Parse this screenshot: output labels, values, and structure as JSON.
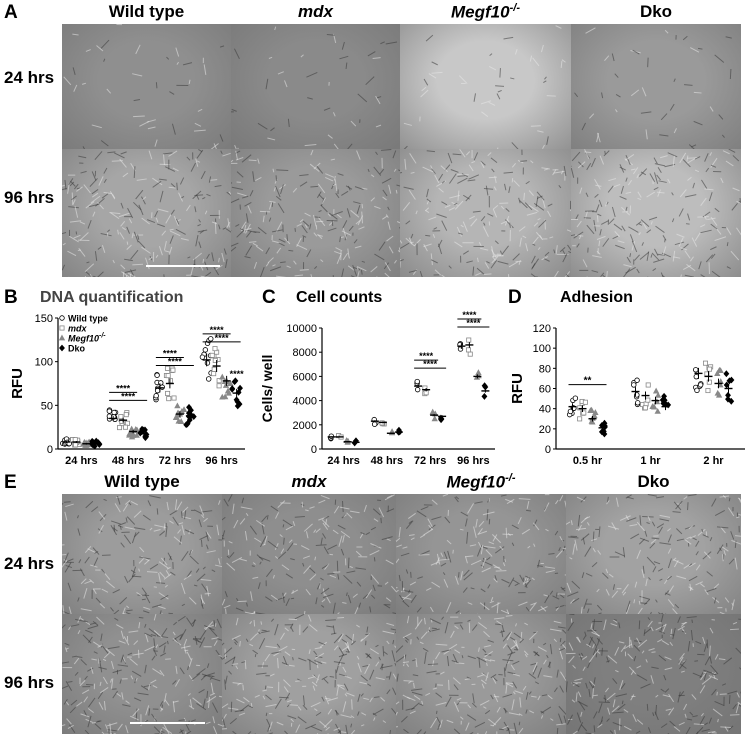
{
  "panelA": {
    "letter": "A",
    "columns": [
      {
        "label": "Wild type",
        "italic": false,
        "sup": ""
      },
      {
        "label": "mdx",
        "italic": true,
        "sup": ""
      },
      {
        "label": "Megf10",
        "italic": true,
        "sup": "-/-"
      },
      {
        "label": "Dko",
        "italic": false,
        "sup": ""
      }
    ],
    "rows": [
      "24 hrs",
      "96 hrs"
    ],
    "tiles": [
      [
        "#8f8f8f",
        "#8a8a8a",
        "#c8c8c8",
        "#9a9a9a"
      ],
      [
        "#a6a6a6",
        "#9a9a9a",
        "#b5b5b5",
        "#bdbdbd"
      ]
    ]
  },
  "panelB": {
    "letter": "B",
    "title": "DNA quantification",
    "legend": [
      {
        "label": "Wild type",
        "italic": false,
        "sup": "",
        "marker": "circle"
      },
      {
        "label": "mdx",
        "italic": true,
        "sup": "",
        "marker": "square"
      },
      {
        "label": "Megf10",
        "italic": true,
        "sup": "-/-",
        "marker": "triangle"
      },
      {
        "label": "Dko",
        "italic": false,
        "sup": "",
        "marker": "diamond"
      }
    ]
  },
  "panelC": {
    "letter": "C",
    "title": "Cell counts"
  },
  "panelD": {
    "letter": "D",
    "title": "Adhesion"
  },
  "panelE": {
    "letter": "E",
    "columns": [
      {
        "label": "Wild type",
        "italic": false,
        "sup": ""
      },
      {
        "label": "mdx",
        "italic": true,
        "sup": ""
      },
      {
        "label": "Megf10",
        "italic": true,
        "sup": "-/-"
      },
      {
        "label": "Dko",
        "italic": false,
        "sup": ""
      }
    ],
    "rows": [
      "24 hrs",
      "96 hrs"
    ],
    "tiles": [
      [
        "#9c9c9c",
        "#8e8e8e",
        "#959595",
        "#a2a2a2"
      ],
      [
        "#909090",
        "#a0a0a0",
        "#9a9a9a",
        "#7f7f7f"
      ]
    ]
  },
  "chart_data": [
    {
      "type": "scatter",
      "panel": "B",
      "title": "DNA quantification",
      "ylabel": "RFU",
      "xlabel": "",
      "categories": [
        "24 hrs",
        "48 hrs",
        "72 hrs",
        "96 hrs"
      ],
      "ylim": [
        0,
        150
      ],
      "yticks": [
        0,
        50,
        100,
        150
      ],
      "series": [
        {
          "name": "Wild type",
          "means": [
            8,
            35,
            70,
            102
          ]
        },
        {
          "name": "mdx",
          "means": [
            8,
            33,
            75,
            95
          ]
        },
        {
          "name": "Megf10-/-",
          "means": [
            6,
            20,
            40,
            78
          ]
        },
        {
          "name": "Dko",
          "means": [
            6,
            18,
            38,
            64
          ]
        }
      ],
      "significance": [
        {
          "group": "48 hrs",
          "from": 0,
          "to": 3,
          "label": "****"
        },
        {
          "group": "48 hrs",
          "from": 0,
          "to": 2,
          "label": "****"
        },
        {
          "group": "72 hrs",
          "from": 0,
          "to": 3,
          "label": "****"
        },
        {
          "group": "72 hrs",
          "from": 0,
          "to": 2,
          "label": "****"
        },
        {
          "group": "96 hrs",
          "from": 0,
          "to": 3,
          "label": "****"
        },
        {
          "group": "96 hrs",
          "from": 0,
          "to": 2,
          "label": "****"
        },
        {
          "group": "96 hrs",
          "from": 3,
          "to": 3,
          "label": "****"
        }
      ]
    },
    {
      "type": "scatter",
      "panel": "C",
      "title": "Cell counts",
      "ylabel": "Cells/ well",
      "xlabel": "",
      "categories": [
        "24 hrs",
        "48 hrs",
        "72 hrs",
        "96 hrs"
      ],
      "ylim": [
        0,
        10000
      ],
      "yticks": [
        0,
        2000,
        4000,
        6000,
        8000,
        10000
      ],
      "series": [
        {
          "name": "Wild type",
          "means": [
            1000,
            2300,
            5200,
            8500
          ]
        },
        {
          "name": "mdx",
          "means": [
            1000,
            2200,
            4900,
            8600
          ]
        },
        {
          "name": "Megf10-/-",
          "means": [
            600,
            1300,
            2800,
            6000
          ]
        },
        {
          "name": "Dko",
          "means": [
            550,
            1400,
            2700,
            4800
          ]
        }
      ],
      "significance": [
        {
          "group": "72 hrs",
          "from": 0,
          "to": 3,
          "label": "****"
        },
        {
          "group": "72 hrs",
          "from": 0,
          "to": 2,
          "label": "****"
        },
        {
          "group": "96 hrs",
          "from": 0,
          "to": 3,
          "label": "****"
        },
        {
          "group": "96 hrs",
          "from": 0,
          "to": 2,
          "label": "****"
        }
      ]
    },
    {
      "type": "scatter",
      "panel": "D",
      "title": "Adhesion",
      "ylabel": "RFU",
      "xlabel": "",
      "categories": [
        "0.5 hr",
        "1 hr",
        "2 hr"
      ],
      "ylim": [
        0,
        120
      ],
      "yticks": [
        0,
        20,
        40,
        60,
        80,
        100,
        120
      ],
      "series": [
        {
          "name": "Wild type",
          "means": [
            42,
            57,
            75
          ]
        },
        {
          "name": "mdx",
          "means": [
            40,
            53,
            72
          ]
        },
        {
          "name": "Megf10-/-",
          "means": [
            30,
            48,
            65
          ]
        },
        {
          "name": "Dko",
          "means": [
            21,
            42,
            60
          ]
        }
      ],
      "significance": [
        {
          "group": "0.5 hr",
          "from": 0,
          "to": 3,
          "label": "**"
        }
      ]
    }
  ]
}
